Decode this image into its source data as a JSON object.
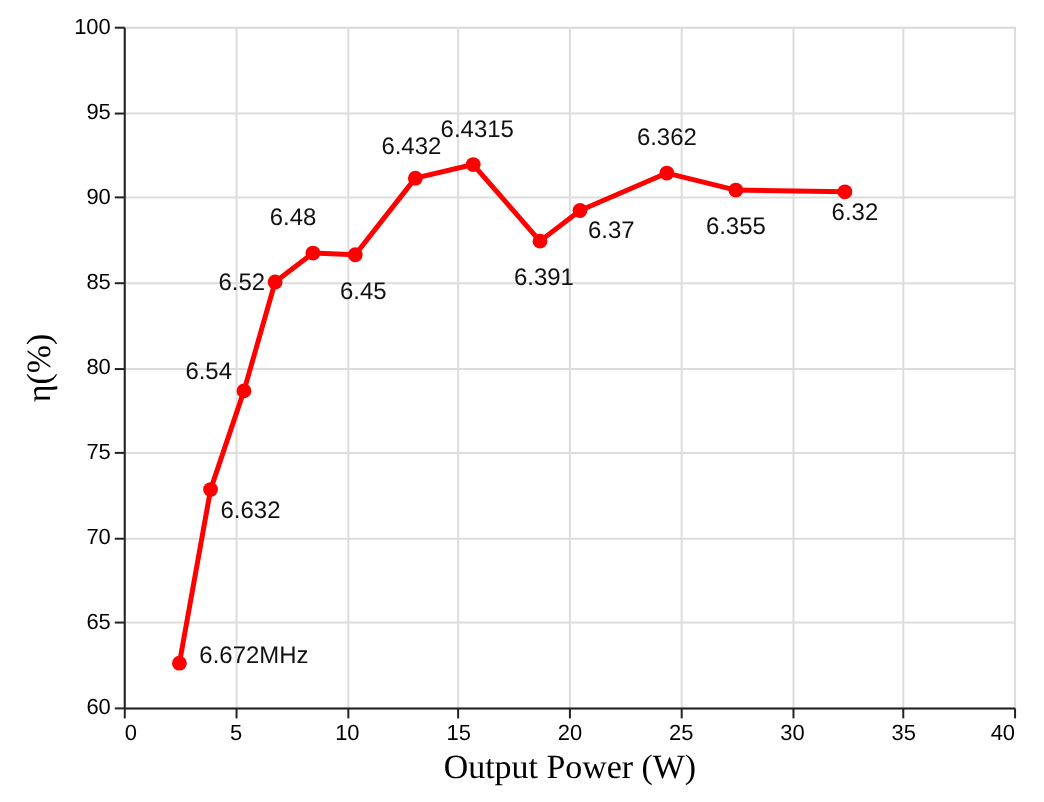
{
  "chart_data": {
    "type": "line",
    "xlabel": "Output Power (W)",
    "ylabel": "η(%)",
    "x": [
      2.5,
      3.9,
      5.4,
      6.8,
      8.5,
      10.4,
      13.1,
      15.7,
      18.7,
      20.5,
      24.4,
      27.5,
      32.4
    ],
    "series": [
      {
        "color": "#ff0000",
        "values": [
          62.6,
          72.8,
          78.6,
          85.0,
          86.7,
          86.6,
          91.1,
          91.9,
          87.4,
          89.2,
          91.4,
          90.4,
          90.3
        ]
      }
    ],
    "xlim": [
      0,
      40
    ],
    "xticks": [
      0,
      5,
      10,
      15,
      20,
      25,
      30,
      35,
      40
    ],
    "ylim": [
      60,
      100
    ],
    "yticks": [
      60,
      65,
      70,
      75,
      80,
      85,
      90,
      95,
      100
    ],
    "grid": true,
    "marker": "circle",
    "line_style": "solid",
    "annotations": [
      {
        "text": "6.672MHz",
        "x": 2.5,
        "y": 62.6
      },
      {
        "text": "6.632",
        "x": 3.9,
        "y": 72.8
      },
      {
        "text": "6.54",
        "x": 5.4,
        "y": 78.6
      },
      {
        "text": "6.52",
        "x": 6.8,
        "y": 85.0
      },
      {
        "text": "6.48",
        "x": 8.5,
        "y": 86.7
      },
      {
        "text": "6.45",
        "x": 10.4,
        "y": 86.6
      },
      {
        "text": "6.432",
        "x": 13.1,
        "y": 91.1
      },
      {
        "text": "6.4315",
        "x": 15.7,
        "y": 91.9
      },
      {
        "text": "6.391",
        "x": 18.7,
        "y": 87.4
      },
      {
        "text": "6.37",
        "x": 20.5,
        "y": 89.2
      },
      {
        "text": "6.362",
        "x": 24.4,
        "y": 91.4
      },
      {
        "text": "6.355",
        "x": 27.5,
        "y": 90.4
      },
      {
        "text": "6.32",
        "x": 32.4,
        "y": 90.3
      }
    ]
  }
}
